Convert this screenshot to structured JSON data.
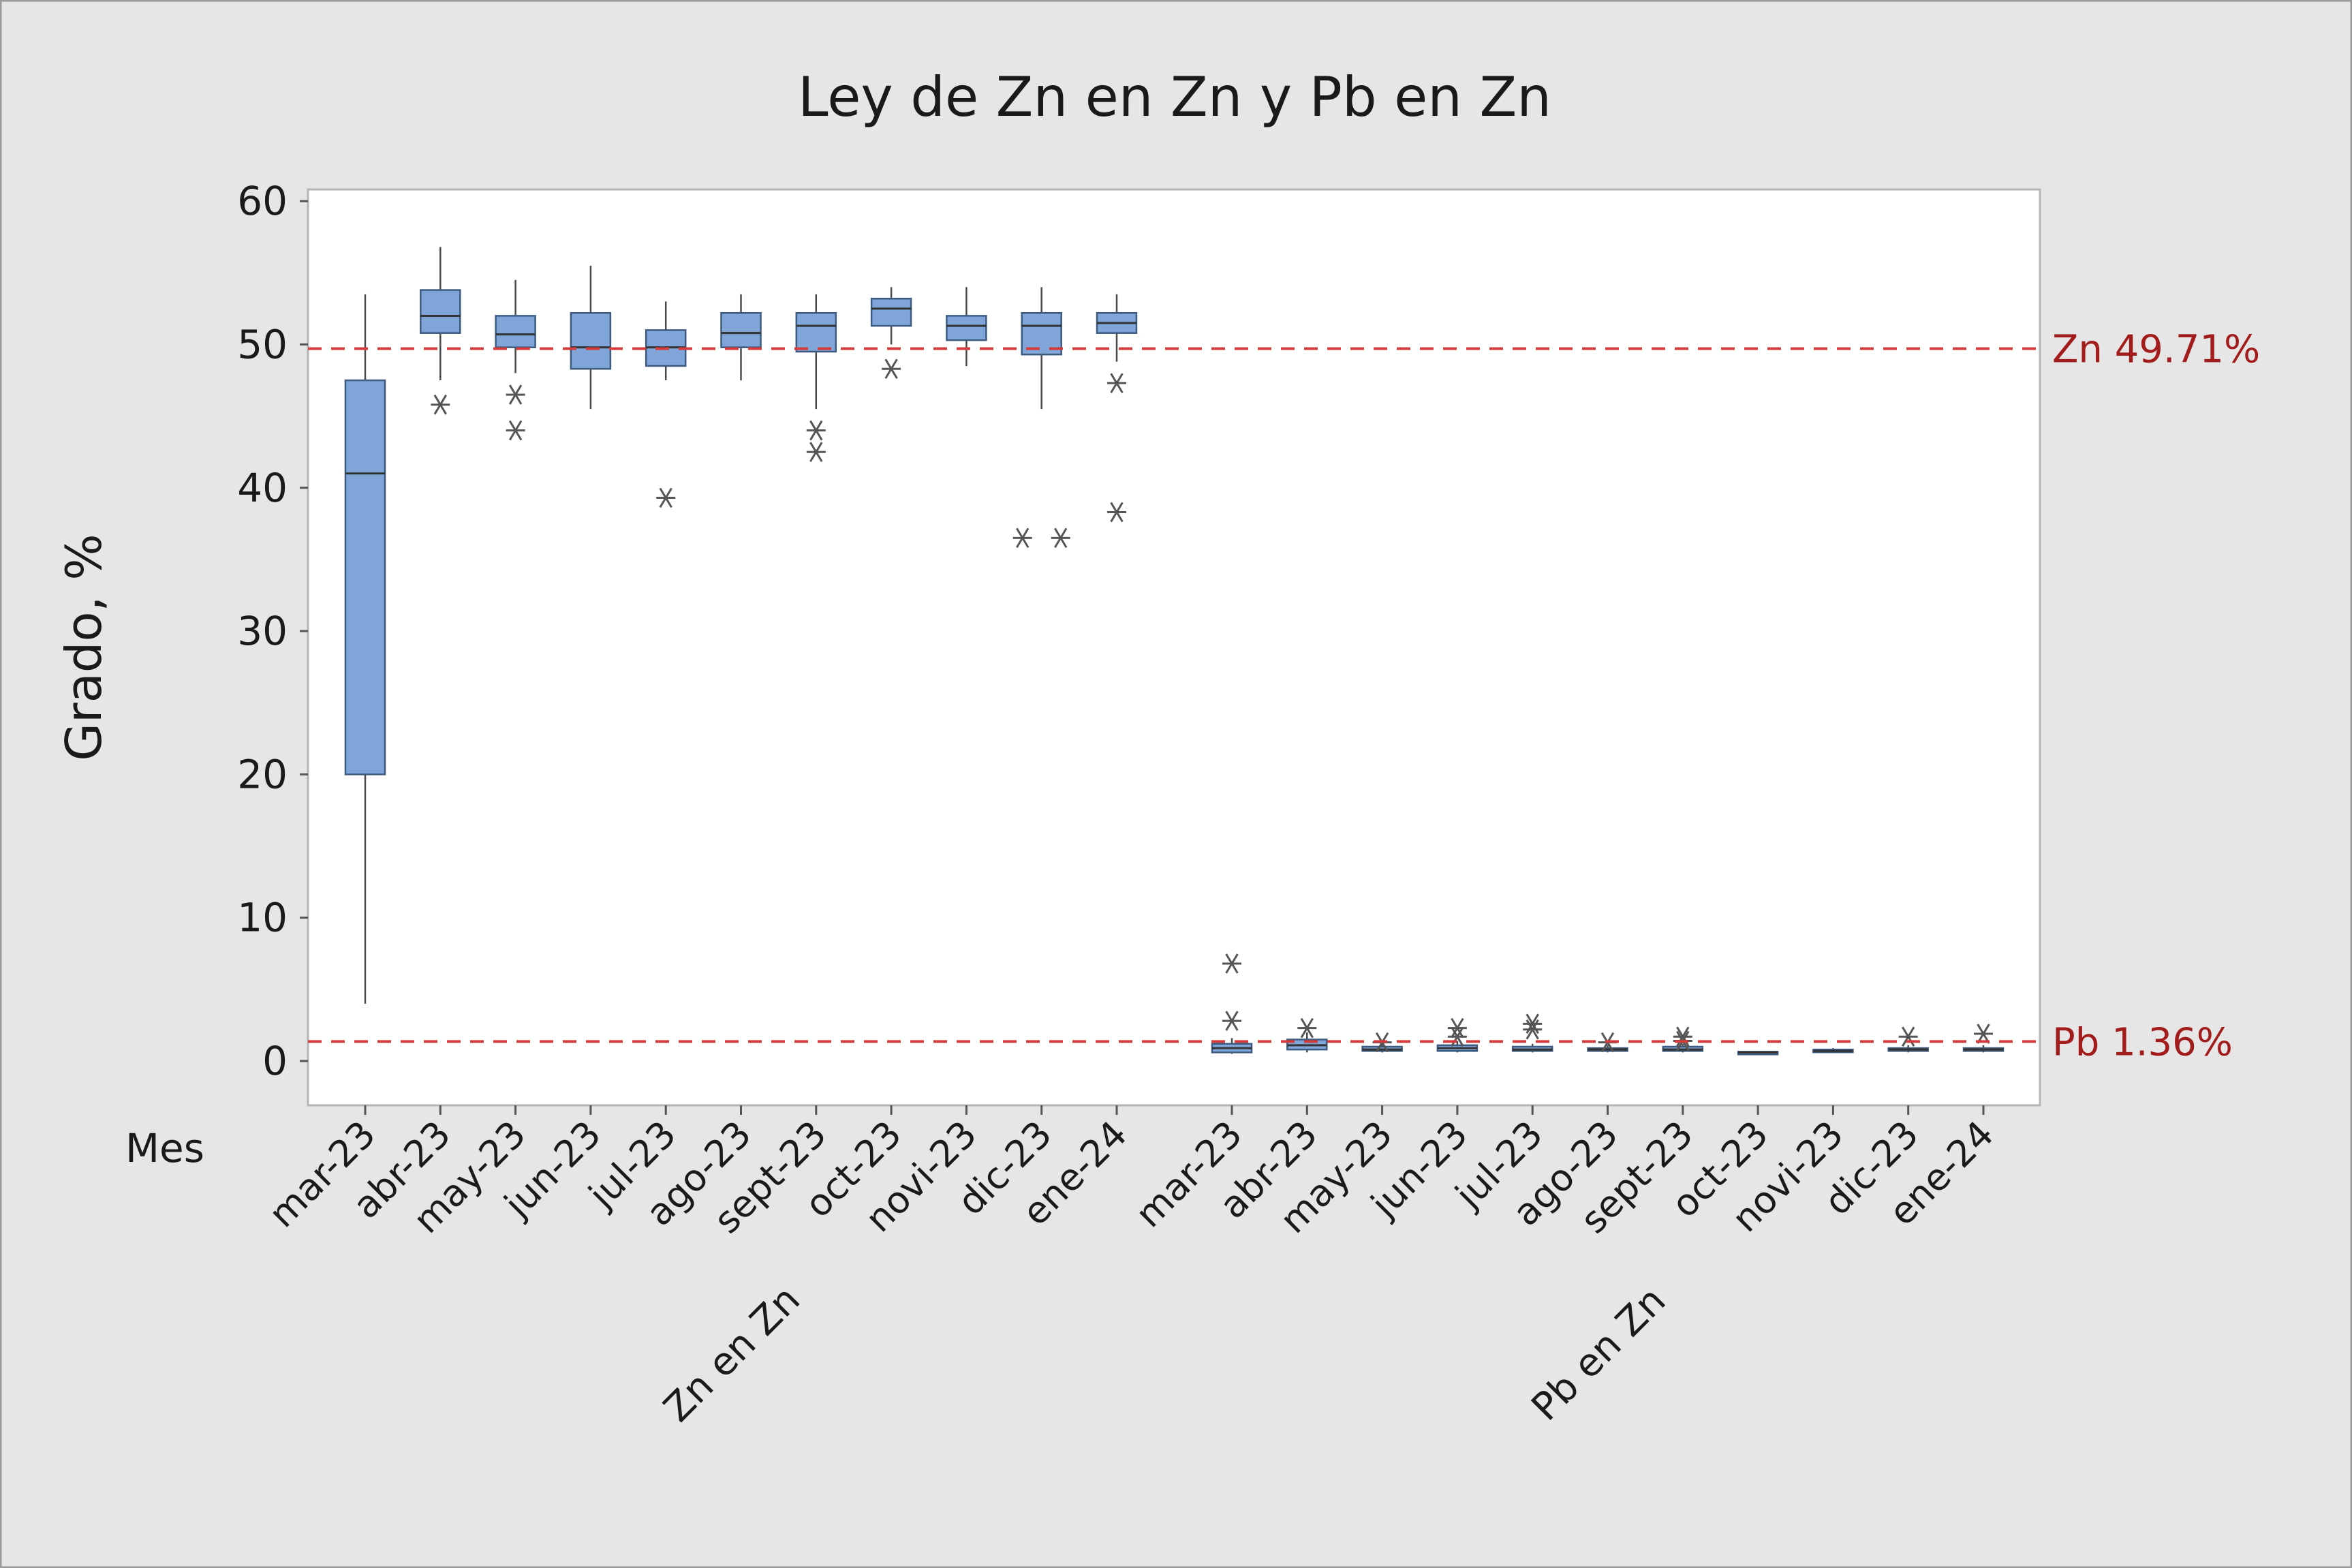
{
  "chart_data": {
    "type": "boxplot",
    "title": "Ley de Zn en Zn y Pb en Zn",
    "ylabel": "Grado, %",
    "xlabel": "Mes",
    "ylim": [
      -3,
      62
    ],
    "yticks": [
      0,
      10,
      20,
      30,
      40,
      50,
      60
    ],
    "grid": false,
    "groups": [
      {
        "name": "Zn en Zn",
        "categories": [
          "mar-23",
          "abr-23",
          "may-23",
          "jun-23",
          "jul-23",
          "ago-23",
          "sept-23",
          "oct-23",
          "novi-23",
          "dic-23",
          "ene-24"
        ],
        "boxes": [
          {
            "min": 4.0,
            "q1": 20.0,
            "median": 41.0,
            "q3": 47.5,
            "max": 53.5,
            "outliers": []
          },
          {
            "min": 47.5,
            "q1": 50.8,
            "median": 52.0,
            "q3": 53.8,
            "max": 56.8,
            "outliers": [
              45.8
            ]
          },
          {
            "min": 48.0,
            "q1": 49.8,
            "median": 50.7,
            "q3": 52.0,
            "max": 54.5,
            "outliers": [
              46.5,
              44.0
            ]
          },
          {
            "min": 45.5,
            "q1": 48.3,
            "median": 49.8,
            "q3": 52.2,
            "max": 55.5,
            "outliers": []
          },
          {
            "min": 47.5,
            "q1": 48.5,
            "median": 49.8,
            "q3": 51.0,
            "max": 53.0,
            "outliers": [
              39.3
            ]
          },
          {
            "min": 47.5,
            "q1": 49.8,
            "median": 50.8,
            "q3": 52.2,
            "max": 53.5,
            "outliers": []
          },
          {
            "min": 45.5,
            "q1": 49.5,
            "median": 51.3,
            "q3": 52.2,
            "max": 53.5,
            "outliers": [
              44.0,
              42.5
            ]
          },
          {
            "min": 50.0,
            "q1": 51.3,
            "median": 52.5,
            "q3": 53.2,
            "max": 54.0,
            "outliers": [
              48.3
            ]
          },
          {
            "min": 48.5,
            "q1": 50.3,
            "median": 51.3,
            "q3": 52.0,
            "max": 54.0,
            "outliers": []
          },
          {
            "min": 45.5,
            "q1": 49.3,
            "median": 51.3,
            "q3": 52.2,
            "max": 54.0,
            "outliers": [
              36.5,
              36.5
            ]
          },
          {
            "min": 48.8,
            "q1": 50.8,
            "median": 51.5,
            "q3": 52.2,
            "max": 53.5,
            "outliers": [
              47.3,
              38.3
            ]
          }
        ]
      },
      {
        "name": "Pb en Zn",
        "categories": [
          "mar-23",
          "abr-23",
          "may-23",
          "jun-23",
          "jul-23",
          "ago-23",
          "sept-23",
          "oct-23",
          "novi-23",
          "dic-23",
          "ene-24"
        ],
        "boxes": [
          {
            "min": 0.5,
            "q1": 0.6,
            "median": 0.9,
            "q3": 1.2,
            "max": 1.6,
            "outliers": [
              6.8,
              2.8
            ]
          },
          {
            "min": 0.6,
            "q1": 0.8,
            "median": 1.1,
            "q3": 1.5,
            "max": 2.0,
            "outliers": [
              2.3
            ]
          },
          {
            "min": 0.6,
            "q1": 0.7,
            "median": 0.8,
            "q3": 1.0,
            "max": 1.2,
            "outliers": [
              1.3
            ]
          },
          {
            "min": 0.6,
            "q1": 0.7,
            "median": 0.9,
            "q3": 1.1,
            "max": 1.4,
            "outliers": [
              2.3,
              1.7
            ]
          },
          {
            "min": 0.6,
            "q1": 0.7,
            "median": 0.8,
            "q3": 1.0,
            "max": 1.2,
            "outliers": [
              2.6,
              2.2
            ]
          },
          {
            "min": 0.6,
            "q1": 0.7,
            "median": 0.8,
            "q3": 0.9,
            "max": 1.1,
            "outliers": [
              1.3
            ]
          },
          {
            "min": 0.6,
            "q1": 0.7,
            "median": 0.8,
            "q3": 1.0,
            "max": 1.2,
            "outliers": [
              1.7,
              1.4
            ]
          },
          {
            "min": 0.5,
            "q1": 0.55,
            "median": 0.6,
            "q3": 0.65,
            "max": 0.7,
            "outliers": []
          },
          {
            "min": 0.6,
            "q1": 0.65,
            "median": 0.7,
            "q3": 0.8,
            "max": 0.9,
            "outliers": []
          },
          {
            "min": 0.6,
            "q1": 0.7,
            "median": 0.8,
            "q3": 0.9,
            "max": 1.1,
            "outliers": [
              1.7
            ]
          },
          {
            "min": 0.6,
            "q1": 0.7,
            "median": 0.8,
            "q3": 0.9,
            "max": 1.1,
            "outliers": [
              1.9
            ]
          }
        ]
      }
    ],
    "reference_lines": [
      {
        "label": "Zn 49.71%",
        "value": 49.71
      },
      {
        "label": "Pb 1.36%",
        "value": 1.36
      }
    ],
    "colors": {
      "box_fill": "#7fa5d9",
      "box_stroke": "#3d5a80",
      "reference_line": "#d23c3c",
      "reference_label": "#a31c1c",
      "background": "#e6e6e6",
      "plot_background": "#ffffff"
    }
  }
}
